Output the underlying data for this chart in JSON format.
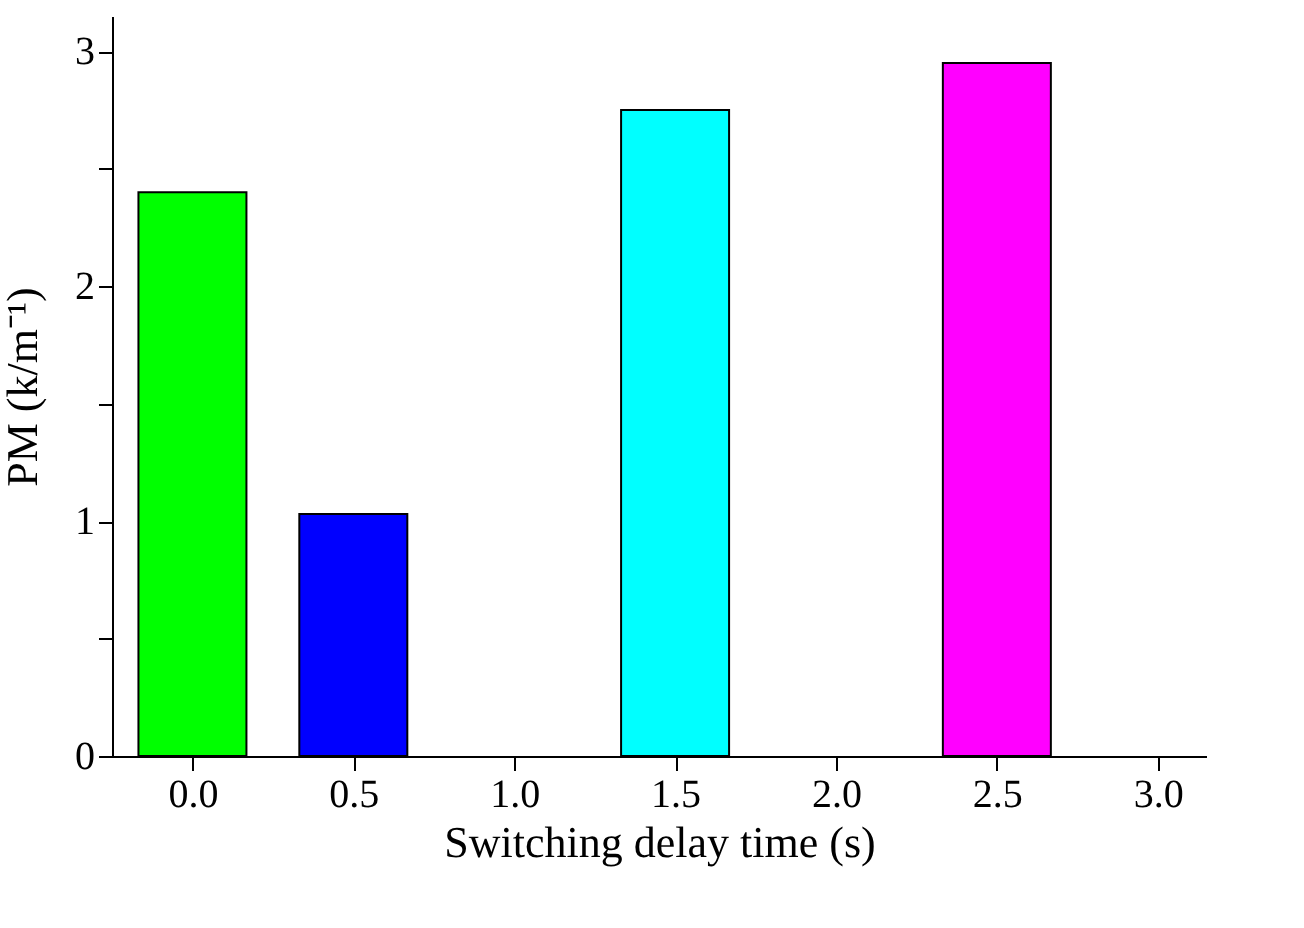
{
  "chart_data": {
    "type": "bar",
    "xlabel": "Switching delay time (s)",
    "ylabel": "PM (k/m⁻¹)",
    "x": [
      0,
      0.5,
      1.5,
      2.5
    ],
    "values": [
      2.4,
      1.03,
      2.75,
      2.95
    ],
    "colors": [
      "#00ff00",
      "#0000ff",
      "#00ffff",
      "#ff00ff"
    ],
    "xlim": [
      -0.25,
      3.15
    ],
    "xticks": [
      {
        "value": 0,
        "label": "0.0"
      },
      {
        "value": 0.5,
        "label": "0.5"
      },
      {
        "value": 1,
        "label": "1.0"
      },
      {
        "value": 1.5,
        "label": "1.5"
      },
      {
        "value": 2,
        "label": "2.0"
      },
      {
        "value": 2.5,
        "label": "2.5"
      },
      {
        "value": 3,
        "label": "3.0"
      }
    ],
    "ylim": [
      0,
      3.15
    ],
    "yticks": [
      0,
      {
        "value": 0.5,
        "label": null
      },
      1,
      {
        "value": 1.5,
        "label": null
      },
      2,
      {
        "value": 2.5,
        "label": null
      },
      3
    ],
    "grid": false,
    "legend": false
  }
}
